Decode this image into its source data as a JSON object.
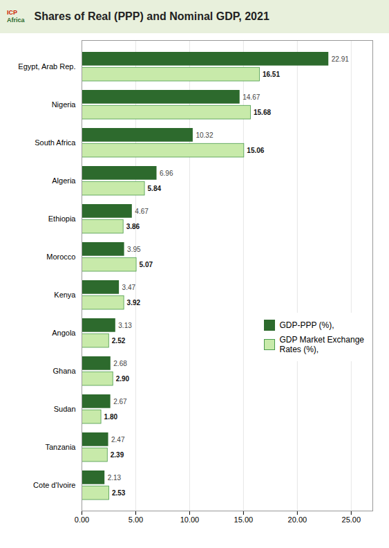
{
  "chart_data": {
    "type": "bar",
    "orientation": "horizontal",
    "title": "Shares of Real (PPP) and Nominal GDP, 2021",
    "annotations": [
      "ICP",
      "Africa"
    ],
    "categories": [
      "Egypt, Arab Rep.",
      "Nigeria",
      "South Africa",
      "Algeria",
      "Ethiopia",
      "Morocco",
      "Kenya",
      "Angola",
      "Ghana",
      "Sudan",
      "Tanzania",
      "Cote d'Ivoire"
    ],
    "series": [
      {
        "name": "GDP-PPP (%),",
        "color": "#2d6a2d",
        "values": [
          22.91,
          14.67,
          10.32,
          6.96,
          4.67,
          3.95,
          3.47,
          3.13,
          2.68,
          2.67,
          2.47,
          2.13
        ],
        "value_labels": [
          "22.91",
          "14.67",
          "10.32",
          "6.96",
          "4.67",
          "3.95",
          "3.47",
          "3.13",
          "2.68",
          "2.67",
          "2.47",
          "2.13"
        ]
      },
      {
        "name": "GDP Market Exchange\nRates (%),",
        "color": "#c8eaaa",
        "values": [
          16.51,
          15.68,
          15.06,
          5.84,
          3.86,
          5.07,
          3.92,
          2.52,
          2.9,
          1.8,
          2.39,
          2.53
        ],
        "value_labels": [
          "16.51",
          "15.68",
          "15.06",
          "5.84",
          "3.86",
          "5.07",
          "3.92",
          "2.52",
          "2.90",
          "1.80",
          "2.39",
          "2.53"
        ]
      }
    ],
    "xlim": [
      0,
      27
    ],
    "xticks": [
      {
        "value": 0,
        "label": "0.00"
      },
      {
        "value": 5,
        "label": "5.00"
      },
      {
        "value": 10,
        "label": "10.00"
      },
      {
        "value": 15,
        "label": "15.00"
      },
      {
        "value": 20,
        "label": "20.00"
      },
      {
        "value": 25,
        "label": "25.00"
      }
    ],
    "grid": true,
    "data_labels": true,
    "legend": "right"
  }
}
